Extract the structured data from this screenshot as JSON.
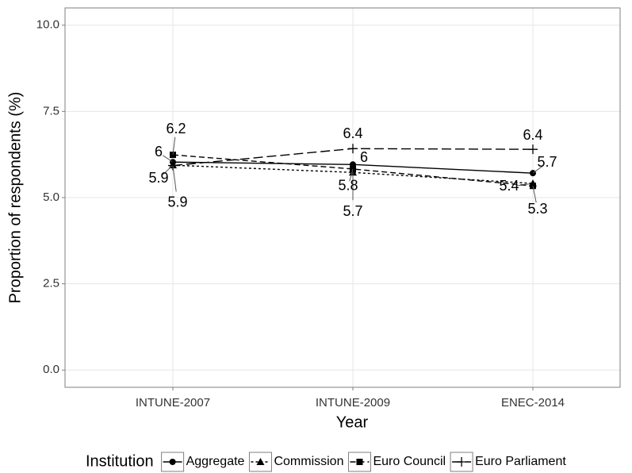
{
  "chart_data": {
    "type": "line",
    "x_label": "Year",
    "y_label": "Proportion of respondents (%)",
    "categories": [
      "INTUNE-2007",
      "INTUNE-2009",
      "ENEC-2014"
    ],
    "ylim": [
      -0.5,
      10.5
    ],
    "yticks": [
      {
        "value": 0,
        "label": "0.0"
      },
      2.5,
      {
        "value": 5,
        "label": "5.0"
      },
      7.5,
      {
        "value": 10,
        "label": "10.0"
      }
    ],
    "grid": true,
    "legend_title": "Institution",
    "legend_position": "bottom",
    "series": [
      {
        "name": "Aggregate",
        "color": "#000000",
        "marker": "circle",
        "linestyle": "solid",
        "values": [
          6.03,
          5.96,
          5.71
        ],
        "value_labels": [
          "6",
          "6",
          "5.7"
        ]
      },
      {
        "name": "Commission",
        "color": "#000000",
        "marker": "triangle",
        "linestyle": "dotted",
        "values": [
          5.94,
          5.73,
          5.41
        ],
        "value_labels": [
          "5.9",
          "5.7",
          "5.4"
        ]
      },
      {
        "name": "Euro Council",
        "color": "#000000",
        "marker": "square",
        "linestyle": "dashed",
        "values": [
          6.24,
          5.83,
          5.34
        ],
        "value_labels": [
          "6.2",
          "5.8",
          "5.3"
        ]
      },
      {
        "name": "Euro Parliament",
        "color": "#000000",
        "marker": "plus",
        "linestyle": "longdash",
        "values": [
          5.93,
          6.42,
          6.4
        ],
        "value_labels": [
          "5.9",
          "6.4",
          "6.4"
        ]
      }
    ]
  }
}
